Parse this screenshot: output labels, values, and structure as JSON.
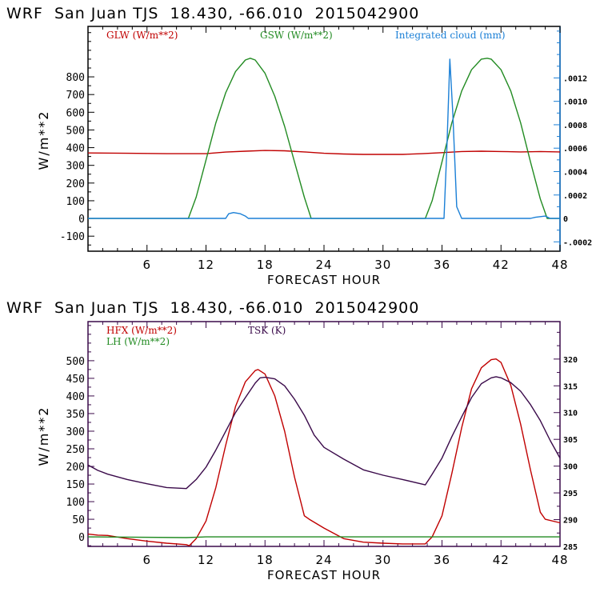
{
  "chart_data": [
    {
      "type": "line",
      "title": "WRF  San Juan TJS  18.430, -66.010  2015042900",
      "xlabel": "FORECAST HOUR",
      "ylabel": "W/m**2",
      "xlim": [
        0,
        48
      ],
      "ylim": [
        -185,
        1085
      ],
      "x_ticks": [
        6,
        12,
        18,
        24,
        30,
        36,
        42,
        48
      ],
      "y_ticks": [
        -100,
        0,
        100,
        200,
        300,
        400,
        500,
        600,
        700,
        800
      ],
      "y2label": "Integrated cloud (mm)",
      "y2lim": [
        -0.00028,
        0.00164
      ],
      "y2_ticks": [
        -0.0002,
        0,
        0.0002,
        0.0004,
        0.0006,
        0.0008,
        0.001,
        0.0012
      ],
      "y2_tick_labels": [
        "-.0002",
        "0",
        ".0002",
        ".0004",
        ".0006",
        ".0008",
        ".0010",
        ".0012"
      ],
      "axis_colors": {
        "left": "#000000",
        "right": "#1a7fd6"
      },
      "series": [
        {
          "name": "GLW (W/m**2)",
          "axis": "left",
          "color": "#c00000",
          "x": [
            0,
            4,
            8,
            12,
            14,
            16,
            18,
            20,
            22,
            24,
            26,
            28,
            30,
            32,
            34,
            36,
            38,
            40,
            42,
            44,
            46,
            48
          ],
          "values": [
            370,
            368,
            366,
            366,
            375,
            380,
            384,
            382,
            376,
            368,
            364,
            362,
            362,
            362,
            366,
            372,
            378,
            380,
            378,
            376,
            378,
            376
          ]
        },
        {
          "name": "GSW (W/m**2)",
          "axis": "left",
          "color": "#228b22",
          "x": [
            0,
            10.2,
            11,
            12,
            13,
            14,
            15,
            16,
            16.5,
            17,
            18,
            19,
            20,
            21,
            22,
            22.7,
            34.3,
            35,
            36,
            37,
            38,
            39,
            40,
            40.6,
            41,
            42,
            43,
            44,
            45,
            46,
            46.7,
            48
          ],
          "values": [
            0,
            0,
            120,
            330,
            540,
            710,
            830,
            895,
            905,
            895,
            820,
            690,
            520,
            320,
            120,
            0,
            0,
            100,
            320,
            540,
            720,
            840,
            900,
            905,
            900,
            840,
            720,
            540,
            320,
            110,
            0,
            0
          ]
        },
        {
          "name": "Integrated cloud (mm)",
          "axis": "right",
          "color": "#1a7fd6",
          "x": [
            0,
            14,
            14.3,
            14.8,
            15.5,
            16,
            16.3,
            36.2,
            36.5,
            36.8,
            37.1,
            37.5,
            38,
            45,
            45.5,
            46.5,
            47,
            48
          ],
          "values": [
            0,
            0,
            4e-05,
            5e-05,
            4e-05,
            2e-05,
            0,
            0,
            0.0006,
            0.00136,
            0.0009,
            0.0001,
            0,
            0,
            1e-05,
            2e-05,
            0,
            0
          ]
        }
      ]
    },
    {
      "type": "line",
      "title": "WRF  San Juan TJS  18.430, -66.010  2015042900",
      "xlabel": "FORECAST HOUR",
      "ylabel": "W/m**2",
      "xlim": [
        0,
        48
      ],
      "ylim": [
        -27,
        611
      ],
      "x_ticks": [
        6,
        12,
        18,
        24,
        30,
        36,
        42,
        48
      ],
      "y_ticks": [
        0,
        50,
        100,
        150,
        200,
        250,
        300,
        350,
        400,
        450,
        500
      ],
      "y2label": "TSK (K)",
      "y2lim": [
        285,
        327
      ],
      "y2_ticks": [
        285,
        290,
        295,
        300,
        305,
        310,
        315,
        320
      ],
      "y2_tick_labels": [
        "285",
        "290",
        "295",
        "300",
        "305",
        "310",
        "315",
        "320"
      ],
      "axis_colors": {
        "left": "#3a0a4a",
        "right": "#3a0a4a"
      },
      "series": [
        {
          "name": "HFX (W/m**2)",
          "axis": "left",
          "color": "#c00000",
          "x": [
            0,
            1,
            2,
            4,
            6,
            8,
            10,
            10.3,
            11,
            12,
            13,
            14,
            15,
            16,
            17,
            17.3,
            18,
            19,
            20,
            21,
            22,
            22.5,
            24,
            26,
            28,
            30,
            32,
            34.3,
            35,
            36,
            37,
            38,
            39,
            40,
            41,
            41.5,
            42,
            43,
            44,
            45,
            46,
            46.5,
            48
          ],
          "values": [
            8,
            5,
            4,
            -5,
            -12,
            -18,
            -22,
            -25,
            -5,
            45,
            140,
            260,
            370,
            440,
            472,
            475,
            462,
            400,
            300,
            170,
            60,
            50,
            25,
            -5,
            -15,
            -18,
            -20,
            -20,
            0,
            60,
            180,
            310,
            420,
            480,
            503,
            505,
            495,
            430,
            320,
            190,
            70,
            50,
            40
          ]
        },
        {
          "name": "LH (W/m**2)",
          "axis": "left",
          "color": "#228b22",
          "x": [
            0,
            10,
            12,
            48
          ],
          "values": [
            0,
            -2,
            0,
            0
          ]
        },
        {
          "name": "TSK (K)",
          "axis": "right",
          "color": "#3a0a4a",
          "x": [
            0,
            1,
            2,
            4,
            6,
            8,
            10,
            11,
            12,
            13,
            14,
            15,
            16,
            17,
            17.5,
            18,
            19,
            20,
            21,
            22,
            23,
            24,
            26,
            28,
            30,
            32,
            34.3,
            35,
            36,
            37,
            38,
            39,
            40,
            41,
            41.5,
            42,
            43,
            44,
            45,
            46,
            47,
            48
          ],
          "values": [
            300.2,
            299.2,
            298.5,
            297.5,
            296.7,
            296.0,
            295.8,
            297.5,
            299.8,
            303.0,
            306.5,
            310.0,
            312.8,
            315.5,
            316.5,
            316.6,
            316.3,
            315.0,
            312.5,
            309.5,
            305.8,
            303.5,
            301.3,
            299.3,
            298.3,
            297.5,
            296.5,
            298.5,
            301.5,
            305.5,
            309.2,
            312.8,
            315.4,
            316.5,
            316.7,
            316.5,
            315.6,
            314.0,
            311.5,
            308.5,
            304.8,
            301.5
          ]
        }
      ]
    }
  ]
}
